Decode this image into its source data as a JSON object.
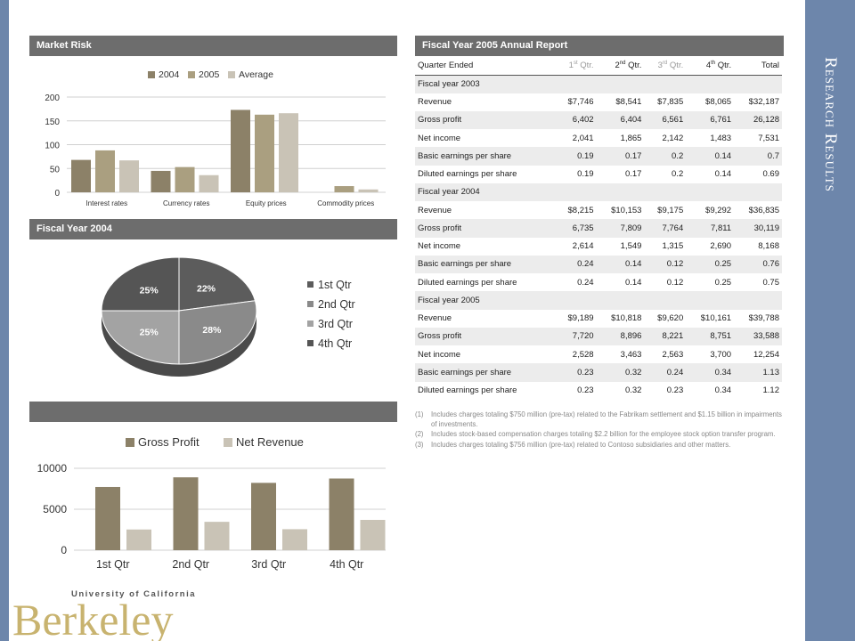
{
  "slide": {
    "title": "Research Results"
  },
  "market_risk": {
    "title": "Market Risk"
  },
  "fy2004": {
    "title": "Fiscal Year 2004"
  },
  "bottom_panel": {
    "title": ""
  },
  "report": {
    "title": "Fiscal Year 2005 Annual Report"
  },
  "chart_data": [
    {
      "type": "bar",
      "title": "",
      "categories": [
        "Interest rates",
        "Currency rates",
        "Equity prices",
        "Commodity prices"
      ],
      "series": [
        {
          "name": "2004",
          "values": [
            68,
            45,
            173,
            0
          ],
          "color": "#8c8168"
        },
        {
          "name": "2005",
          "values": [
            88,
            53,
            163,
            13
          ],
          "color": "#aa9f80"
        },
        {
          "name": "Average",
          "values": [
            67,
            36,
            166,
            6
          ],
          "color": "#c9c3b6"
        }
      ],
      "yticks": [
        "0",
        "50",
        "100",
        "150",
        "200"
      ],
      "ylim": [
        0,
        200
      ],
      "grid": true,
      "legend": "top"
    },
    {
      "type": "pie",
      "title": "",
      "slices": [
        {
          "name": "1st Qtr",
          "value": 22,
          "label": "22%",
          "color": "#5c5c5c"
        },
        {
          "name": "2nd Qtr",
          "value": 28,
          "label": "28%",
          "color": "#8a8a8a"
        },
        {
          "name": "3rd Qtr",
          "value": 25,
          "label": "25%",
          "color": "#a3a3a3"
        },
        {
          "name": "4th Qtr",
          "value": 25,
          "label": "25%",
          "color": "#555555"
        }
      ],
      "legend": "right"
    },
    {
      "type": "bar",
      "title": "",
      "categories": [
        "1st Qtr",
        "2nd Qtr",
        "3rd Qtr",
        "4th Qtr"
      ],
      "series": [
        {
          "name": "Gross Profit",
          "values": [
            7720,
            8896,
            8221,
            8751
          ],
          "color": "#8c8168"
        },
        {
          "name": "Net Revenue",
          "values": [
            2528,
            3463,
            2563,
            3700
          ],
          "color": "#c9c3b6"
        }
      ],
      "yticks": [
        "0",
        "5000",
        "10000"
      ],
      "ylim": [
        0,
        10000
      ],
      "grid": true,
      "legend": "top"
    }
  ],
  "table": {
    "header": {
      "label": "Quarter Ended",
      "q1": "1",
      "q1_sup": "st",
      "q1_rest": " Qtr.",
      "q2": "2",
      "q2_sup": "nd",
      "q2_rest": " Qtr.",
      "q3": "3",
      "q3_sup": "rd",
      "q3_rest": " Qtr.",
      "q4": "4",
      "q4_sup": "th",
      "q4_rest": " Qtr.",
      "total": "Total"
    },
    "sections": [
      {
        "label": "Fiscal year 2003",
        "rows": [
          [
            "Revenue",
            "$7,746",
            "$8,541",
            "$7,835",
            "$8,065",
            "$32,187"
          ],
          [
            "Gross profit",
            "6,402",
            "6,404",
            "6,561",
            "6,761",
            "26,128"
          ],
          [
            "Net income",
            "2,041",
            "1,865",
            "2,142",
            "1,483",
            "7,531"
          ],
          [
            "Basic earnings per share",
            "0.19",
            "0.17",
            "0.2",
            "0.14",
            "0.7"
          ],
          [
            "Diluted earnings per share",
            "0.19",
            "0.17",
            "0.2",
            "0.14",
            "0.69"
          ]
        ]
      },
      {
        "label": "Fiscal year 2004",
        "rows": [
          [
            "Revenue",
            "$8,215",
            "$10,153",
            "$9,175",
            "$9,292",
            "$36,835"
          ],
          [
            "Gross profit",
            "6,735",
            "7,809",
            "7,764",
            "7,811",
            "30,119"
          ],
          [
            "Net income",
            "2,614",
            "1,549",
            "1,315",
            "2,690",
            "8,168"
          ],
          [
            "Basic earnings per share",
            "0.24",
            "0.14",
            "0.12",
            "0.25",
            "0.76"
          ],
          [
            "Diluted earnings per share",
            "0.24",
            "0.14",
            "0.12",
            "0.25",
            "0.75"
          ]
        ]
      },
      {
        "label": "Fiscal year 2005",
        "rows": [
          [
            "Revenue",
            "$9,189",
            "$10,818",
            "$9,620",
            "$10,161",
            "$39,788"
          ],
          [
            "Gross profit",
            "7,720",
            "8,896",
            "8,221",
            "8,751",
            "33,588"
          ],
          [
            "Net income",
            "2,528",
            "3,463",
            "2,563",
            "3,700",
            "12,254"
          ],
          [
            "Basic earnings per share",
            "0.23",
            "0.32",
            "0.24",
            "0.34",
            "1.13"
          ],
          [
            "Diluted earnings per share",
            "0.23",
            "0.32",
            "0.23",
            "0.34",
            "1.12"
          ]
        ]
      }
    ]
  },
  "notes": [
    {
      "n": "(1)",
      "text": "Includes charges totaling $750 million (pre-tax) related to the Fabrikam settlement and $1.15 billion in impairments of investments."
    },
    {
      "n": "(2)",
      "text": "Includes stock-based compensation charges totaling $2.2 billion for the employee stock option transfer program."
    },
    {
      "n": "(3)",
      "text": "Includes charges totaling $756 million (pre-tax) related to Contoso subsidiaries and other matters."
    }
  ],
  "logo": {
    "line1": "University of California",
    "line2": "Berkeley"
  }
}
